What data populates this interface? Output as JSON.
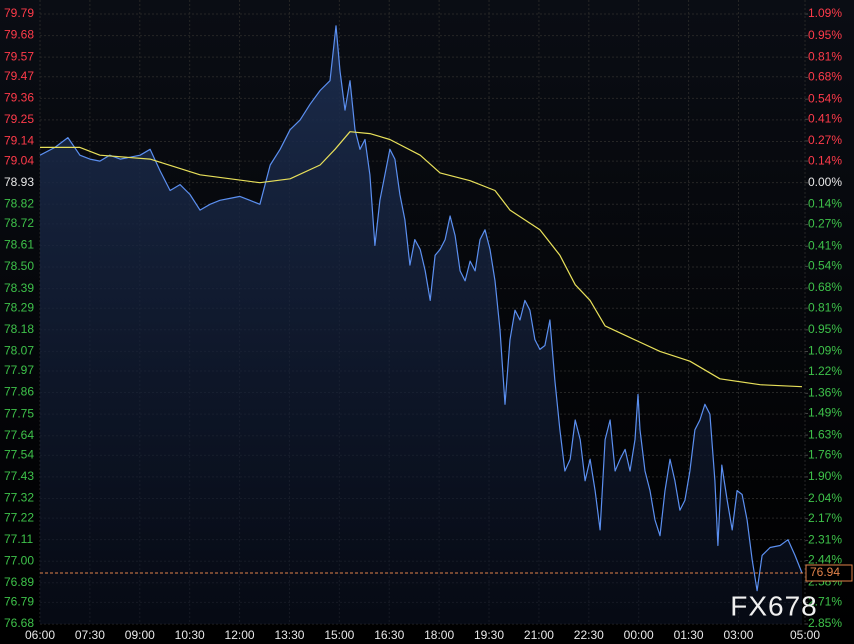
{
  "chart_data": {
    "type": "line",
    "watermark": "FX678",
    "current_price": 76.94,
    "up_color": "#ff3b4a",
    "down_color": "#3ec24a",
    "flat_color": "#e8e8e8",
    "grid": true,
    "xlim": [
      0,
      23
    ],
    "xticks": [
      {
        "value": 0,
        "label": "06:00"
      },
      {
        "value": 1.5,
        "label": "07:30"
      },
      {
        "value": 3,
        "label": "09:00"
      },
      {
        "value": 4.5,
        "label": "10:30"
      },
      {
        "value": 6,
        "label": "12:00"
      },
      {
        "value": 7.5,
        "label": "13:30"
      },
      {
        "value": 9,
        "label": "15:00"
      },
      {
        "value": 10.5,
        "label": "16:30"
      },
      {
        "value": 12,
        "label": "18:00"
      },
      {
        "value": 13.5,
        "label": "19:30"
      },
      {
        "value": 15,
        "label": "21:00"
      },
      {
        "value": 16.5,
        "label": "22:30"
      },
      {
        "value": 18,
        "label": "00:00"
      },
      {
        "value": 19.5,
        "label": "01:30"
      },
      {
        "value": 21,
        "label": "03:00"
      },
      {
        "value": 23,
        "label": "05:00"
      }
    ],
    "ylim": [
      76.68,
      79.79
    ],
    "yticks": [
      79.79,
      79.68,
      79.57,
      79.47,
      79.36,
      79.25,
      79.14,
      79.04,
      78.93,
      78.82,
      78.72,
      78.61,
      {
        "value": 78.5,
        "label": "78.50"
      },
      78.39,
      78.29,
      78.18,
      78.07,
      77.97,
      77.86,
      77.75,
      77.64,
      77.54,
      77.43,
      77.32,
      77.22,
      77.11,
      {
        "value": 77,
        "label": "77.00"
      },
      76.89,
      76.79,
      76.68
    ],
    "y2lim": [
      -2.85,
      1.09
    ],
    "y2ticks": [
      {
        "value": 1.09,
        "label": "1.09%"
      },
      {
        "value": 0.95,
        "label": "0.95%"
      },
      {
        "value": 0.81,
        "label": "0.81%"
      },
      {
        "value": 0.68,
        "label": "0.68%"
      },
      {
        "value": 0.54,
        "label": "0.54%"
      },
      {
        "value": 0.41,
        "label": "0.41%"
      },
      {
        "value": 0.27,
        "label": "0.27%"
      },
      {
        "value": 0.14,
        "label": "0.14%"
      },
      {
        "value": 0,
        "label": "0.00%"
      },
      {
        "value": -0.14,
        "label": "0.14%"
      },
      {
        "value": -0.27,
        "label": "0.27%"
      },
      {
        "value": -0.41,
        "label": "0.41%"
      },
      {
        "value": -0.54,
        "label": "0.54%"
      },
      {
        "value": -0.68,
        "label": "0.68%"
      },
      {
        "value": -0.81,
        "label": "0.81%"
      },
      {
        "value": -0.95,
        "label": "0.95%"
      },
      {
        "value": -1.09,
        "label": "1.09%"
      },
      {
        "value": -1.22,
        "label": "1.22%"
      },
      {
        "value": -1.36,
        "label": "1.36%"
      },
      {
        "value": -1.49,
        "label": "1.49%"
      },
      {
        "value": -1.63,
        "label": "1.63%"
      },
      {
        "value": -1.76,
        "label": "1.76%"
      },
      {
        "value": -1.9,
        "label": "1.90%"
      },
      {
        "value": -2.04,
        "label": "2.04%"
      },
      {
        "value": -2.17,
        "label": "2.17%"
      },
      {
        "value": -2.31,
        "label": "2.31%"
      },
      {
        "value": -2.44,
        "label": "2.44%"
      },
      {
        "value": -2.58,
        "label": "2.58%"
      },
      {
        "value": -2.71,
        "label": "2.71%"
      },
      {
        "value": -2.85,
        "label": "2.85%"
      }
    ],
    "series": [
      {
        "color": "#5b8ff0",
        "x": [
          0,
          0.45,
          0.84,
          1.2,
          1.5,
          1.8,
          2.1,
          2.41,
          2.71,
          3.01,
          3.31,
          3.61,
          3.91,
          4.21,
          4.51,
          4.81,
          5.11,
          5.41,
          5.71,
          6.01,
          6.31,
          6.61,
          6.92,
          7.22,
          7.52,
          7.82,
          8.12,
          8.42,
          8.72,
          8.9,
          9.02,
          9.17,
          9.32,
          9.47,
          9.62,
          9.77,
          9.92,
          10.07,
          10.22,
          10.37,
          10.52,
          10.67,
          10.82,
          10.97,
          11.12,
          11.27,
          11.43,
          11.58,
          11.73,
          11.88,
          12.03,
          12.18,
          12.33,
          12.48,
          12.63,
          12.78,
          12.93,
          13.08,
          13.23,
          13.38,
          13.53,
          13.68,
          13.83,
          13.98,
          14.13,
          14.28,
          14.43,
          14.58,
          14.73,
          14.88,
          15.03,
          15.18,
          15.33,
          15.48,
          15.63,
          15.78,
          15.94,
          16.09,
          16.24,
          16.39,
          16.54,
          16.69,
          16.84,
          16.99,
          17.14,
          17.29,
          17.44,
          17.59,
          17.74,
          17.89,
          17.98,
          18.04,
          18.19,
          18.34,
          18.49,
          18.64,
          18.79,
          18.94,
          19.09,
          19.24,
          19.39,
          19.54,
          19.69,
          19.84,
          19.99,
          20.14,
          20.29,
          20.38,
          20.5,
          20.66,
          20.81,
          20.96,
          21.11,
          21.26,
          21.41,
          21.56,
          21.71,
          21.95,
          22.25,
          22.49,
          22.7,
          22.91
        ],
        "values": [
          79.07,
          79.11,
          79.16,
          79.07,
          79.05,
          79.04,
          79.07,
          79.05,
          79.06,
          79.07,
          79.1,
          78.99,
          78.89,
          78.92,
          78.87,
          78.79,
          78.82,
          78.84,
          78.85,
          78.86,
          78.84,
          78.82,
          79.02,
          79.1,
          79.2,
          79.25,
          79.33,
          79.4,
          79.45,
          79.73,
          79.5,
          79.3,
          79.45,
          79.2,
          79.1,
          79.15,
          78.97,
          78.61,
          78.84,
          78.97,
          79.1,
          79.05,
          78.87,
          78.74,
          78.51,
          78.64,
          78.59,
          78.48,
          78.33,
          78.56,
          78.59,
          78.64,
          78.76,
          78.66,
          78.48,
          78.43,
          78.53,
          78.48,
          78.64,
          78.69,
          78.59,
          78.43,
          78.18,
          77.8,
          78.13,
          78.28,
          78.23,
          78.33,
          78.28,
          78.13,
          78.08,
          78.1,
          78.23,
          77.92,
          77.67,
          77.46,
          77.52,
          77.72,
          77.62,
          77.41,
          77.52,
          77.36,
          77.16,
          77.62,
          77.72,
          77.46,
          77.52,
          77.57,
          77.46,
          77.62,
          77.85,
          77.67,
          77.46,
          77.36,
          77.21,
          77.13,
          77.36,
          77.52,
          77.41,
          77.26,
          77.31,
          77.46,
          77.67,
          77.72,
          77.8,
          77.75,
          77.41,
          77.08,
          77.49,
          77.31,
          77.16,
          77.36,
          77.34,
          77.21,
          77.01,
          76.85,
          77.03,
          77.07,
          77.08,
          77.11,
          77.03,
          76.94
        ]
      },
      {
        "color": "#e8e05a",
        "x": [
          0,
          1.2,
          1.8,
          3.31,
          4.81,
          6.61,
          7.52,
          8.42,
          8.87,
          9.32,
          9.92,
          10.52,
          11.43,
          12.03,
          12.93,
          13.68,
          14.13,
          15.03,
          15.63,
          16.09,
          16.54,
          16.99,
          17.74,
          18.64,
          19.54,
          20.44,
          21.65,
          22.91
        ],
        "values": [
          79.11,
          79.11,
          79.07,
          79.05,
          78.97,
          78.93,
          78.95,
          79.02,
          79.1,
          79.19,
          79.18,
          79.15,
          79.07,
          78.98,
          78.94,
          78.89,
          78.79,
          78.69,
          78.56,
          78.41,
          78.33,
          78.2,
          78.14,
          78.07,
          78.02,
          77.93,
          77.9,
          77.89
        ]
      }
    ]
  }
}
